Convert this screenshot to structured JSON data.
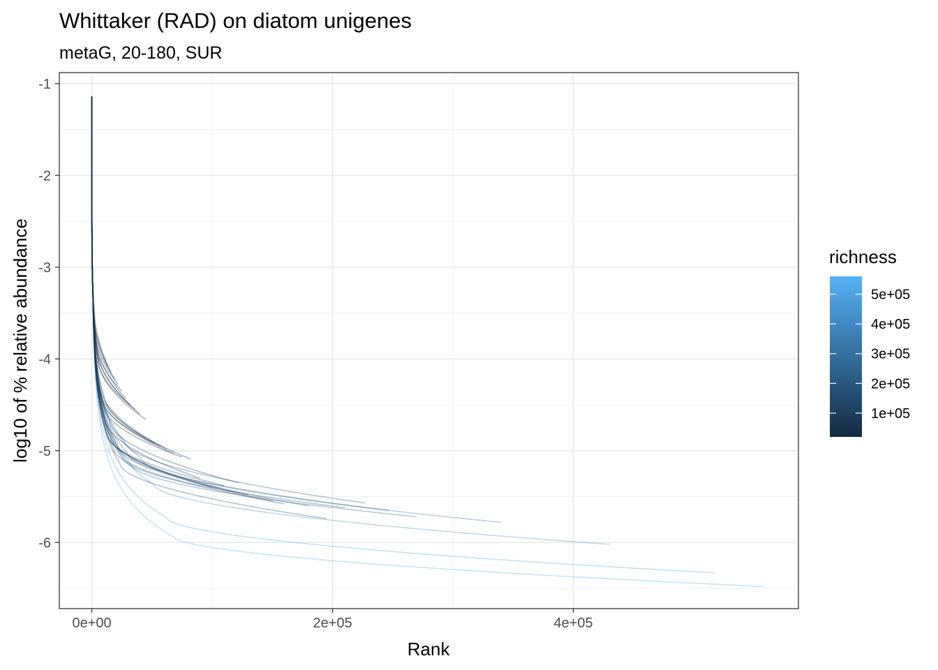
{
  "chart_data": {
    "type": "line",
    "title": "Whittaker (RAD) on diatom unigenes",
    "subtitle": "metaG, 20-180, SUR",
    "xlabel": "Rank",
    "ylabel": "log10 of % relative abundance",
    "xlim": [
      -27000,
      587000
    ],
    "ylim": [
      -6.72,
      -0.88
    ],
    "x_ticks": [
      {
        "value": 0,
        "label": "0e+00"
      },
      {
        "value": 200000,
        "label": "2e+05"
      },
      {
        "value": 400000,
        "label": "4e+05"
      }
    ],
    "y_ticks": [
      {
        "value": -1,
        "label": "-1"
      },
      {
        "value": -2,
        "label": "-2"
      },
      {
        "value": -3,
        "label": "-3"
      },
      {
        "value": -4,
        "label": "-4"
      },
      {
        "value": -5,
        "label": "-5"
      },
      {
        "value": -6,
        "label": "-6"
      }
    ],
    "grid": true,
    "color_legend": {
      "title": "richness",
      "placement": "right",
      "low_color": "#132b43",
      "high_color": "#56b1f7",
      "range": [
        20000,
        560000
      ],
      "ticks": [
        {
          "value": 100000,
          "label": "1e+05"
        },
        {
          "value": 200000,
          "label": "2e+05"
        },
        {
          "value": 300000,
          "label": "3e+05"
        },
        {
          "value": 400000,
          "label": "4e+05"
        },
        {
          "value": 500000,
          "label": "5e+05"
        }
      ]
    },
    "series": [
      {
        "richness": 558000,
        "y0": -1.3,
        "end": -6.48
      },
      {
        "richness": 517000,
        "y0": -1.28,
        "end": -6.33
      },
      {
        "richness": 430000,
        "y0": -1.25,
        "end": -6.02
      },
      {
        "richness": 340000,
        "y0": -1.22,
        "end": -5.78
      },
      {
        "richness": 270000,
        "y0": -1.2,
        "end": -5.72
      },
      {
        "richness": 247000,
        "y0": -1.2,
        "end": -5.65
      },
      {
        "richness": 227000,
        "y0": -1.18,
        "end": -5.57
      },
      {
        "richness": 210000,
        "y0": -1.17,
        "end": -5.62
      },
      {
        "richness": 195000,
        "y0": -1.17,
        "end": -5.74
      },
      {
        "richness": 180000,
        "y0": -1.16,
        "end": -5.6
      },
      {
        "richness": 160000,
        "y0": -1.16,
        "end": -5.58
      },
      {
        "richness": 150000,
        "y0": -1.15,
        "end": -5.55
      },
      {
        "richness": 130000,
        "y0": -1.15,
        "end": -5.48
      },
      {
        "richness": 122000,
        "y0": -1.15,
        "end": -5.35
      },
      {
        "richness": 110000,
        "y0": -1.14,
        "end": -5.38
      },
      {
        "richness": 100000,
        "y0": -1.14,
        "end": -5.4
      },
      {
        "richness": 90000,
        "y0": -1.14,
        "end": -5.3
      },
      {
        "richness": 82000,
        "y0": -1.14,
        "end": -5.09
      },
      {
        "richness": 75000,
        "y0": -1.14,
        "end": -5.07
      },
      {
        "richness": 68000,
        "y0": -1.14,
        "end": -5.03
      },
      {
        "richness": 62000,
        "y0": -1.14,
        "end": -4.98
      },
      {
        "richness": 57000,
        "y0": -1.14,
        "end": -4.95
      },
      {
        "richness": 52000,
        "y0": -1.14,
        "end": -4.92
      },
      {
        "richness": 45000,
        "y0": -1.14,
        "end": -4.66
      },
      {
        "richness": 40000,
        "y0": -1.14,
        "end": -4.6
      },
      {
        "richness": 36000,
        "y0": -1.14,
        "end": -4.55
      },
      {
        "richness": 32000,
        "y0": -1.14,
        "end": -4.5
      },
      {
        "richness": 28000,
        "y0": -1.14,
        "end": -4.43
      },
      {
        "richness": 25000,
        "y0": -1.14,
        "end": -4.35
      },
      {
        "richness": 22000,
        "y0": -1.14,
        "end": -4.28
      },
      {
        "richness": 19000,
        "y0": -1.14,
        "end": -4.22
      },
      {
        "richness": 16000,
        "y0": -1.14,
        "end": -4.15
      },
      {
        "richness": 13000,
        "y0": -1.14,
        "end": -4.08
      }
    ]
  }
}
